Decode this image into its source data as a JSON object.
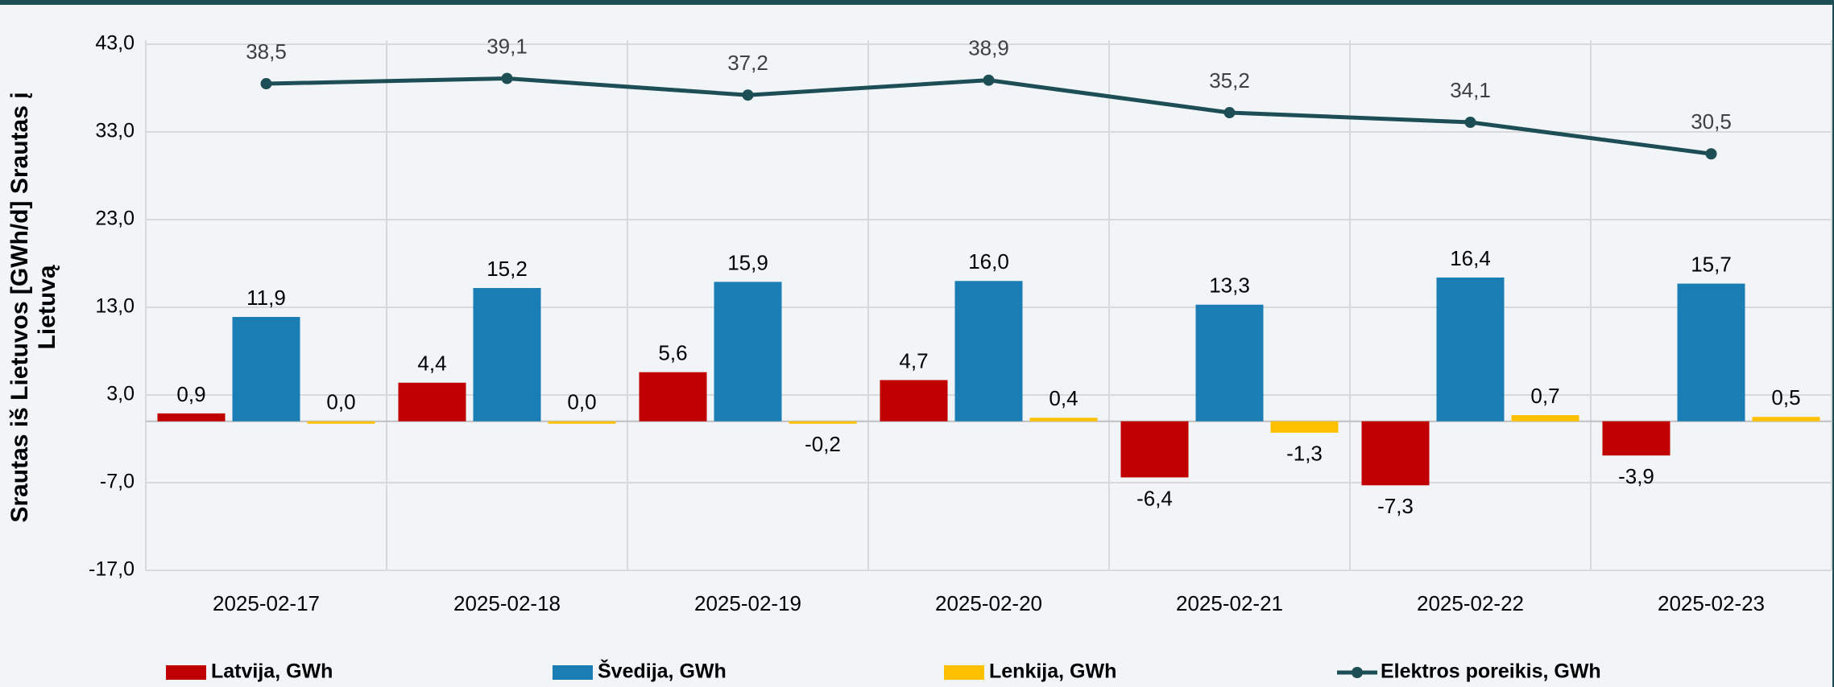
{
  "chart_data": {
    "type": "bar",
    "ylabel": "Srautas iš Lietuvos [GWh/d] Srautas į Lietuvą",
    "categories": [
      "2025-02-17",
      "2025-02-18",
      "2025-02-19",
      "2025-02-20",
      "2025-02-21",
      "2025-02-22",
      "2025-02-23"
    ],
    "series": [
      {
        "name": "Latvija, GWh",
        "color": "#c00000",
        "type": "bar",
        "values": [
          0.9,
          4.4,
          5.6,
          4.7,
          -6.4,
          -7.3,
          -3.9
        ],
        "value_labels": [
          "0,9",
          "4,4",
          "5,6",
          "4,7",
          "-6,4",
          "-7,3",
          "-3,9"
        ]
      },
      {
        "name": "Švedija, GWh",
        "color": "#1a7db4",
        "type": "bar",
        "values": [
          11.9,
          15.2,
          15.9,
          16.0,
          13.3,
          16.4,
          15.7
        ],
        "value_labels": [
          "11,9",
          "15,2",
          "15,9",
          "16,0",
          "13,3",
          "16,4",
          "15,7"
        ]
      },
      {
        "name": "Lenkija, GWh",
        "color": "#ffc000",
        "type": "bar",
        "values": [
          0.0,
          0.0,
          -0.2,
          0.4,
          -1.3,
          0.7,
          0.5
        ],
        "value_labels": [
          "0,0",
          "0,0",
          "-0,2",
          "0,4",
          "-1,3",
          "0,7",
          "0,5"
        ]
      },
      {
        "name": "Elektros poreikis, GWh",
        "color": "#1d4e55",
        "type": "line",
        "values": [
          38.5,
          39.1,
          37.2,
          38.9,
          35.2,
          34.1,
          30.5
        ],
        "value_labels": [
          "38,5",
          "39,1",
          "37,2",
          "38,9",
          "35,2",
          "34,1",
          "30,5"
        ]
      }
    ],
    "ylim": [
      -17,
      43
    ],
    "yticks": [
      {
        "value": -17,
        "label": "-17,0"
      },
      {
        "value": -7,
        "label": "-7,0"
      },
      {
        "value": 3,
        "label": "3,0"
      },
      {
        "value": 13,
        "label": "13,0"
      },
      {
        "value": 23,
        "label": "23,0"
      },
      {
        "value": 33,
        "label": "33,0"
      },
      {
        "value": 43,
        "label": "43,0"
      }
    ],
    "grid": true,
    "legend": "bottom"
  }
}
